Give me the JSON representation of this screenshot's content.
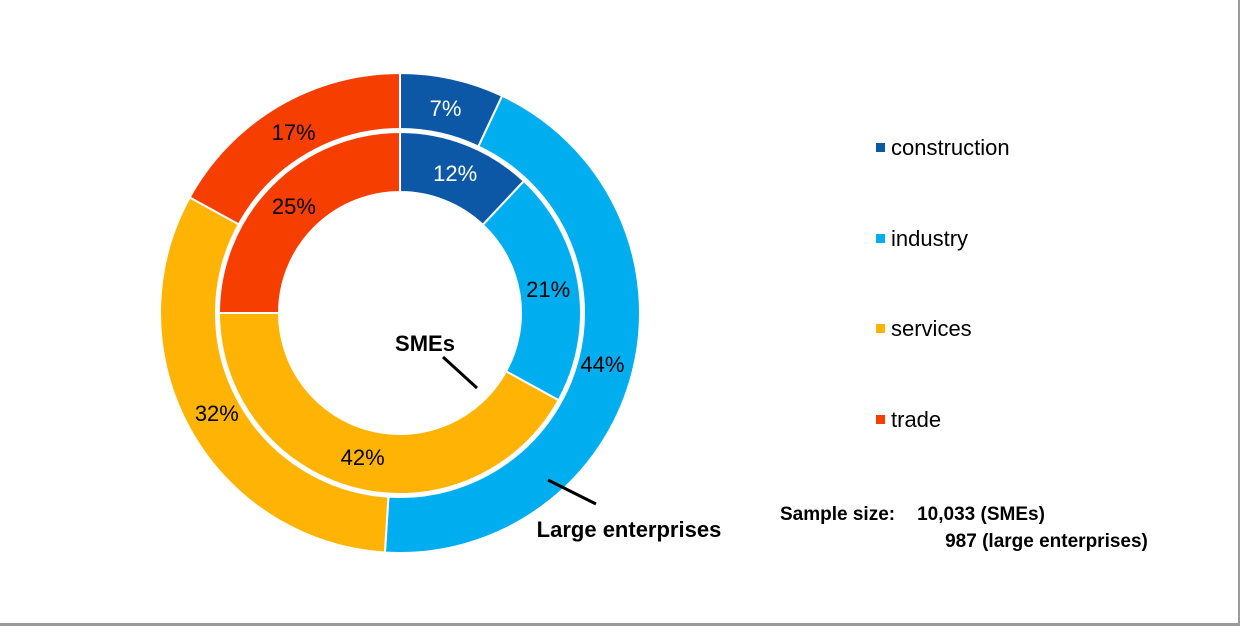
{
  "chart_data": {
    "type": "pie",
    "subtype": "nested-donut",
    "title": "",
    "categories": [
      "construction",
      "industry",
      "services",
      "trade"
    ],
    "colors": [
      "#0D58A6",
      "#00AEEF",
      "#FFB405",
      "#F53E00"
    ],
    "start_angle_deg": 0,
    "direction": "clockwise",
    "legend_position": "right",
    "rings": [
      {
        "name": "SMEs",
        "position": "inner",
        "values": [
          12,
          21,
          42,
          25
        ],
        "labels": [
          "12%",
          "21%",
          "42%",
          "25%"
        ],
        "label_colors": [
          "#FFFFFF",
          "#000000",
          "#000000",
          "#000000"
        ]
      },
      {
        "name": "Large enterprises",
        "position": "outer",
        "values": [
          7,
          44,
          32,
          17
        ],
        "labels": [
          "7%",
          "44%",
          "32%",
          "17%"
        ],
        "label_colors": [
          "#FFFFFF",
          "#000000",
          "#000000",
          "#000000"
        ]
      }
    ]
  },
  "legend": {
    "items": [
      {
        "label": "construction",
        "color": "#0D58A6"
      },
      {
        "label": "industry",
        "color": "#00AEEF"
      },
      {
        "label": "services",
        "color": "#FFB405"
      },
      {
        "label": "trade",
        "color": "#F53E00"
      }
    ]
  },
  "sample_size": {
    "label": "Sample size:",
    "line1": "10,033 (SMEs)",
    "line2": "987 (large enterprises)"
  },
  "frame": {
    "border_color": "#9A9A9A",
    "background_color": "#FFFFFF"
  }
}
